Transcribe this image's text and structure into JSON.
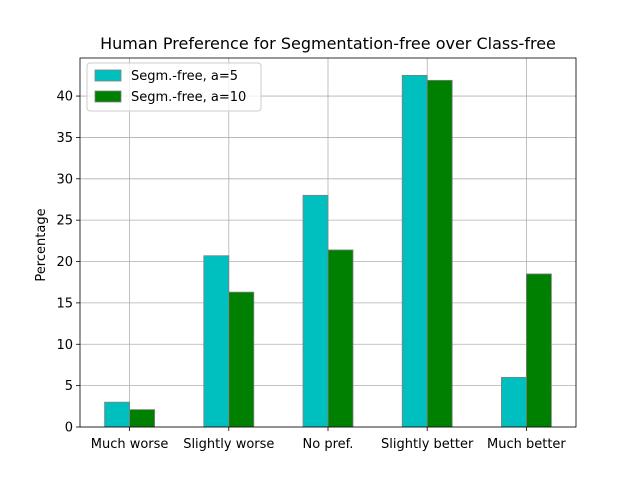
{
  "chart_data": {
    "type": "bar",
    "title": "Human Preference for Segmentation-free over Class-free",
    "xlabel": "",
    "ylabel": "Percentage",
    "categories": [
      "Much worse",
      "Slightly worse",
      "No pref.",
      "Slightly better",
      "Much better"
    ],
    "series": [
      {
        "name": "Segm.-free, a=5",
        "values": [
          3.0,
          20.7,
          28.0,
          42.5,
          6.0
        ],
        "color": "#00bfbf"
      },
      {
        "name": "Segm.-free, a=10",
        "values": [
          2.1,
          16.3,
          21.4,
          41.9,
          18.5
        ],
        "color": "#008000"
      }
    ],
    "ylim": [
      0,
      44.6
    ],
    "yticks": [
      0,
      5,
      10,
      15,
      20,
      25,
      30,
      35,
      40
    ],
    "grid": true,
    "legend_position": "top-left",
    "bar_edge_color": "#808080"
  }
}
